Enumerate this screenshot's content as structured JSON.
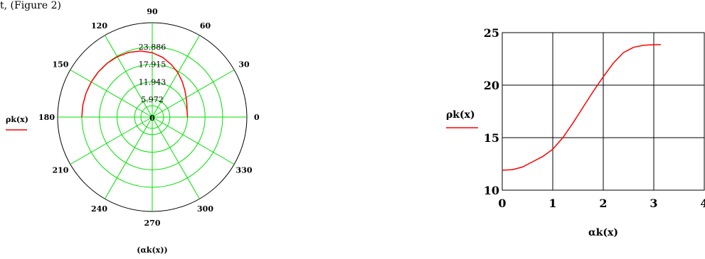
{
  "fragment_text": "t, (Figure 2)",
  "chart_data": [
    {
      "type": "polar",
      "angle_ticks": [
        "0",
        "30",
        "60",
        "90",
        "120",
        "150",
        "180",
        "210",
        "240",
        "270",
        "300",
        "330"
      ],
      "radial_tick_labels": [
        "5.972",
        "11.943",
        "17.915",
        "23.886"
      ],
      "center_label": "0",
      "rmax": 23.886,
      "legend_label": "ρk(x)",
      "xlabel": "(αk(x))",
      "grid": true,
      "series": [
        {
          "color": "#ff0000",
          "points": [
            [
              0,
              11.94
            ],
            [
              10,
              12.0
            ],
            [
              20,
              12.5
            ],
            [
              30,
              13.3
            ],
            [
              40,
              14.4
            ],
            [
              50,
              15.8
            ],
            [
              60,
              17.4
            ],
            [
              70,
              19.0
            ],
            [
              80,
              20.6
            ],
            [
              90,
              21.9
            ],
            [
              100,
              22.8
            ],
            [
              110,
              23.4
            ],
            [
              120,
              23.7
            ],
            [
              130,
              23.85
            ],
            [
              140,
              23.88
            ],
            [
              150,
              23.886
            ],
            [
              160,
              23.886
            ],
            [
              170,
              23.886
            ],
            [
              180,
              23.886
            ]
          ]
        }
      ]
    },
    {
      "type": "line",
      "xlabel": "αk(x)",
      "ylabel": "ρk(x)",
      "xlim": [
        0,
        4
      ],
      "ylim": [
        10,
        25
      ],
      "x_ticks": [
        "0",
        "1",
        "2",
        "3",
        "4"
      ],
      "y_ticks": [
        "10",
        "15",
        "20",
        "25"
      ],
      "grid": true,
      "series": [
        {
          "color": "#ff0000",
          "x": [
            0,
            0.2,
            0.4,
            0.6,
            0.8,
            1.0,
            1.2,
            1.4,
            1.6,
            1.8,
            2.0,
            2.2,
            2.4,
            2.6,
            2.8,
            3.0,
            3.14
          ],
          "y": [
            11.9,
            11.95,
            12.2,
            12.7,
            13.2,
            13.9,
            15.0,
            16.4,
            17.9,
            19.4,
            20.8,
            22.1,
            23.1,
            23.6,
            23.8,
            23.85,
            23.86
          ]
        }
      ]
    }
  ]
}
